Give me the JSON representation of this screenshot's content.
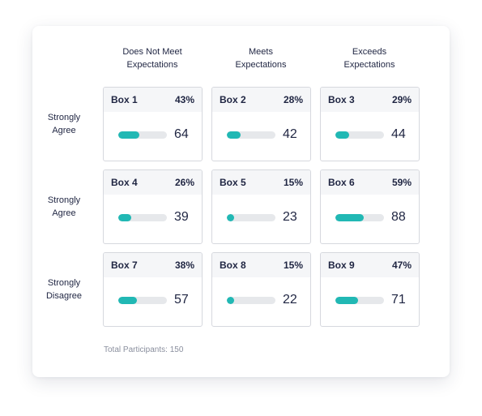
{
  "columns": [
    {
      "line1": "Does Not Meet",
      "line2": "Expectations"
    },
    {
      "line1": "Meets",
      "line2": "Expectations"
    },
    {
      "line1": "Exceeds",
      "line2": "Expectations"
    }
  ],
  "rows": [
    {
      "line1": "Strongly",
      "line2": "Agree"
    },
    {
      "line1": "Strongly",
      "line2": "Agree"
    },
    {
      "line1": "Strongly",
      "line2": "Disagree"
    }
  ],
  "boxes": [
    {
      "label": "Box 1",
      "percent": "43%",
      "count": "64",
      "fill": 0.43
    },
    {
      "label": "Box 2",
      "percent": "28%",
      "count": "42",
      "fill": 0.28
    },
    {
      "label": "Box 3",
      "percent": "29%",
      "count": "44",
      "fill": 0.29
    },
    {
      "label": "Box 4",
      "percent": "26%",
      "count": "39",
      "fill": 0.26
    },
    {
      "label": "Box 5",
      "percent": "15%",
      "count": "23",
      "fill": 0.15
    },
    {
      "label": "Box 6",
      "percent": "59%",
      "count": "88",
      "fill": 0.59
    },
    {
      "label": "Box 7",
      "percent": "38%",
      "count": "57",
      "fill": 0.38
    },
    {
      "label": "Box 8",
      "percent": "15%",
      "count": "22",
      "fill": 0.15
    },
    {
      "label": "Box 9",
      "percent": "47%",
      "count": "71",
      "fill": 0.47
    }
  ],
  "footer": {
    "total_label": "Total Participants: 150"
  },
  "colors": {
    "accent": "#21b8b4",
    "text": "#1f2542",
    "muted": "#8a8f9e"
  }
}
